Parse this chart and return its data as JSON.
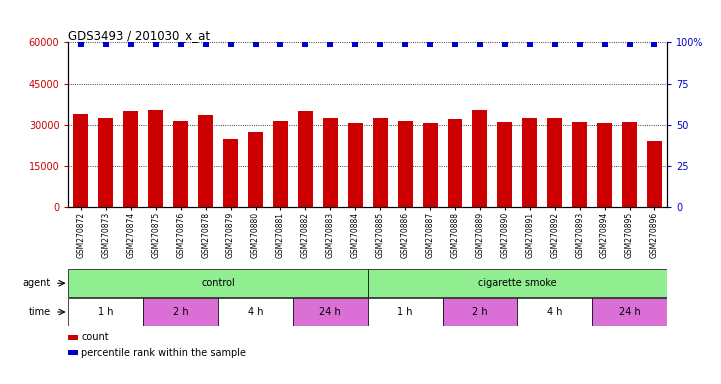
{
  "title": "GDS3493 / 201030_x_at",
  "samples": [
    "GSM270872",
    "GSM270873",
    "GSM270874",
    "GSM270875",
    "GSM270876",
    "GSM270878",
    "GSM270879",
    "GSM270880",
    "GSM270881",
    "GSM270882",
    "GSM270883",
    "GSM270884",
    "GSM270885",
    "GSM270886",
    "GSM270887",
    "GSM270888",
    "GSM270889",
    "GSM270890",
    "GSM270891",
    "GSM270892",
    "GSM270893",
    "GSM270894",
    "GSM270895",
    "GSM270896"
  ],
  "counts": [
    34000,
    32500,
    35000,
    35500,
    31500,
    33500,
    25000,
    27500,
    31500,
    35000,
    32500,
    30500,
    32500,
    31500,
    30500,
    32000,
    35500,
    31000,
    32500,
    32500,
    31000,
    30500,
    31000,
    24000
  ],
  "percentiles": [
    99,
    99,
    99,
    99,
    99,
    99,
    99,
    99,
    99,
    99,
    99,
    99,
    99,
    99,
    99,
    99,
    99,
    99,
    99,
    99,
    99,
    99,
    99,
    99
  ],
  "bar_color": "#cc0000",
  "dot_color": "#0000cc",
  "left_yticks": [
    0,
    15000,
    30000,
    45000,
    60000
  ],
  "right_yticks": [
    0,
    25,
    50,
    75,
    100
  ],
  "ylim_left": [
    0,
    60000
  ],
  "ylim_right": [
    0,
    100
  ],
  "agent_groups": [
    {
      "label": "control",
      "start": 0,
      "end": 12,
      "color": "#90ee90"
    },
    {
      "label": "cigarette smoke",
      "start": 12,
      "end": 24,
      "color": "#90ee90"
    }
  ],
  "time_groups": [
    {
      "label": "1 h",
      "start": 0,
      "end": 3,
      "color": "#ffffff"
    },
    {
      "label": "2 h",
      "start": 3,
      "end": 6,
      "color": "#da70d6"
    },
    {
      "label": "4 h",
      "start": 6,
      "end": 9,
      "color": "#ffffff"
    },
    {
      "label": "24 h",
      "start": 9,
      "end": 12,
      "color": "#da70d6"
    },
    {
      "label": "1 h",
      "start": 12,
      "end": 15,
      "color": "#ffffff"
    },
    {
      "label": "2 h",
      "start": 15,
      "end": 18,
      "color": "#da70d6"
    },
    {
      "label": "4 h",
      "start": 18,
      "end": 21,
      "color": "#ffffff"
    },
    {
      "label": "24 h",
      "start": 21,
      "end": 24,
      "color": "#da70d6"
    }
  ],
  "bg_color": "#ffffff",
  "bar_color_legend": "#cc0000",
  "dot_color_legend": "#0000cc"
}
